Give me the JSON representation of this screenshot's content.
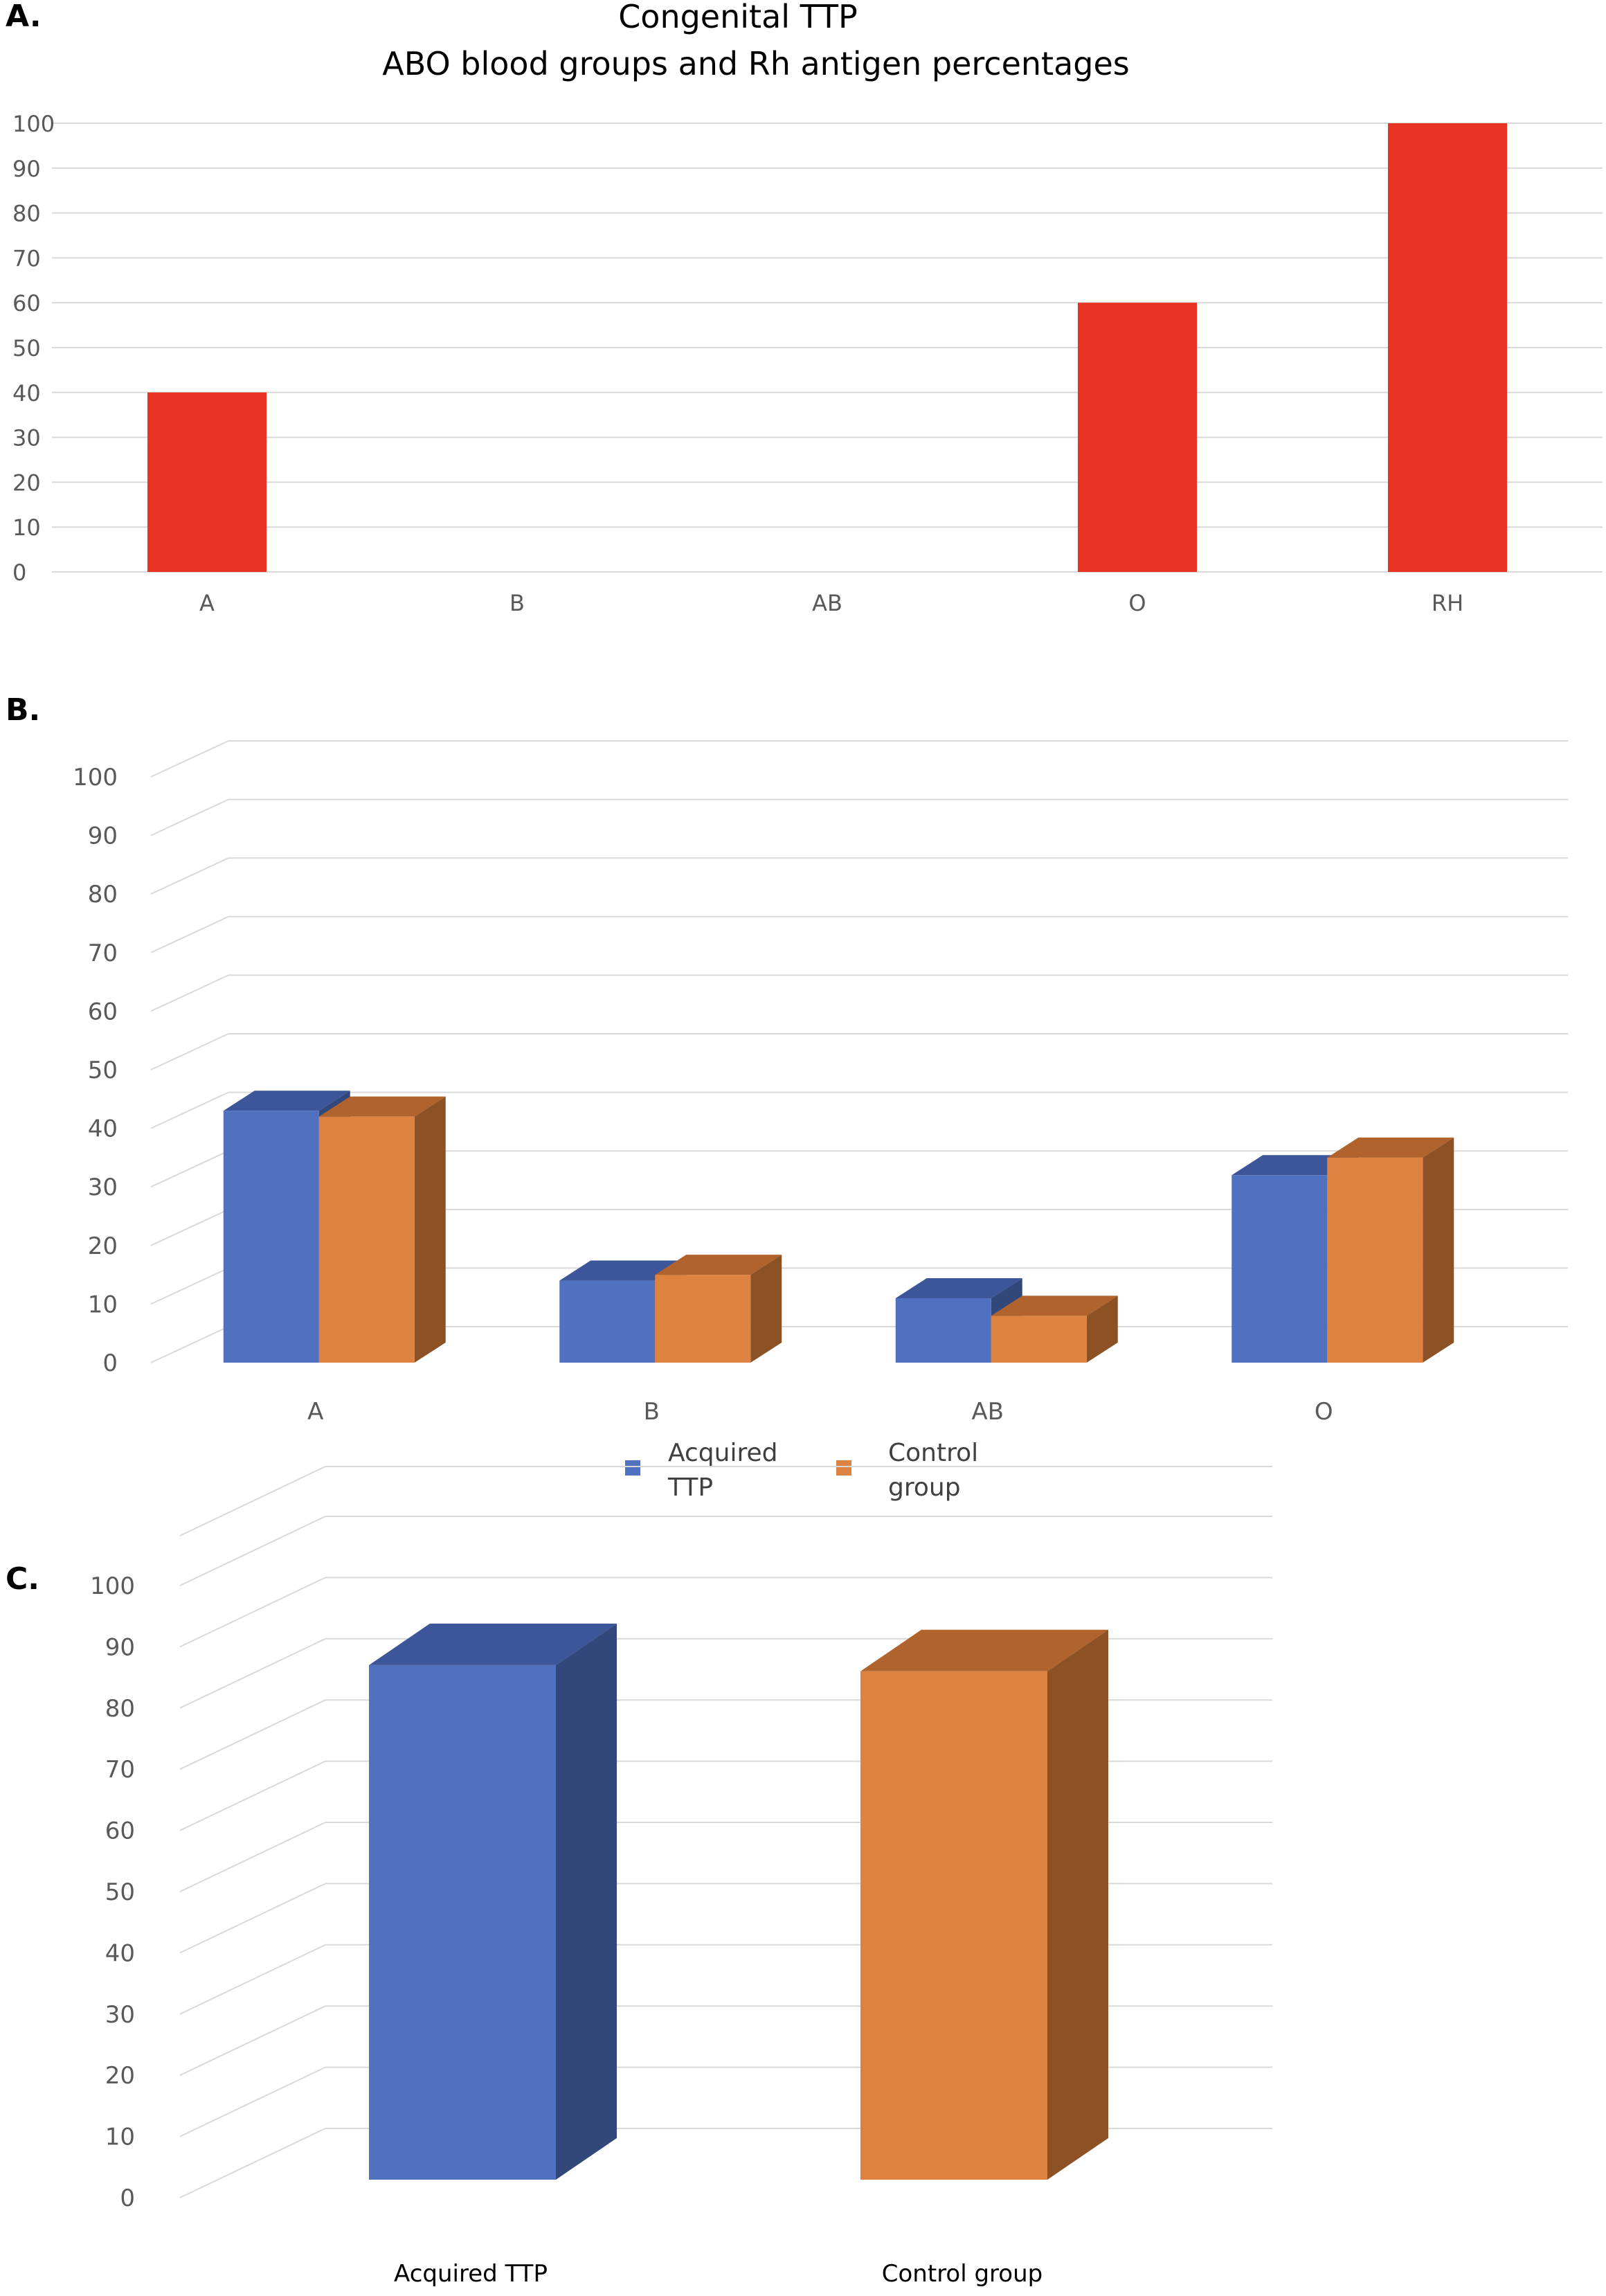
{
  "colors": {
    "panel_a_bar": "#E83322",
    "blue_front": "#5070C0",
    "blue_top": "#3D5599",
    "blue_side": "#32477A",
    "orange_front": "#DD8240",
    "orange_top": "#B0632C",
    "orange_side": "#8C5226",
    "grid": "#D9D9D9",
    "tick_text": "#595959"
  },
  "chart_data": [
    {
      "panel_label": "A.",
      "type": "bar",
      "title": "Congenital TTP",
      "subtitle": "ABO blood groups and Rh antigen percentages",
      "categories": [
        "A",
        "B",
        "AB",
        "O",
        "RH"
      ],
      "values": [
        40,
        0,
        0,
        60,
        100
      ],
      "yticks": [
        "0",
        "10",
        "20",
        "30",
        "40",
        "50",
        "60",
        "70",
        "80",
        "90",
        "100"
      ],
      "ylim": [
        0,
        100
      ],
      "grid": true,
      "legend": "none"
    },
    {
      "panel_label": "B.",
      "type": "bar",
      "categories": [
        "A",
        "B",
        "AB",
        "O"
      ],
      "series": [
        {
          "name": "Acquired TTP",
          "values": [
            43,
            14,
            11,
            32
          ]
        },
        {
          "name": "Control group",
          "values": [
            42,
            15,
            8,
            35
          ]
        }
      ],
      "yticks": [
        "0",
        "10",
        "20",
        "30",
        "40",
        "50",
        "60",
        "70",
        "80",
        "90",
        "100"
      ],
      "ylim": [
        0,
        100
      ],
      "grid": true,
      "legend": "bottom"
    },
    {
      "panel_label": "C.",
      "type": "bar",
      "categories": [
        "Acquired TTP",
        "Control group"
      ],
      "values": [
        87,
        86
      ],
      "yticks": [
        "0",
        "10",
        "20",
        "30",
        "40",
        "50",
        "60",
        "70",
        "80",
        "90",
        "100"
      ],
      "ylim": [
        0,
        100
      ],
      "grid": true,
      "legend": "none"
    }
  ]
}
